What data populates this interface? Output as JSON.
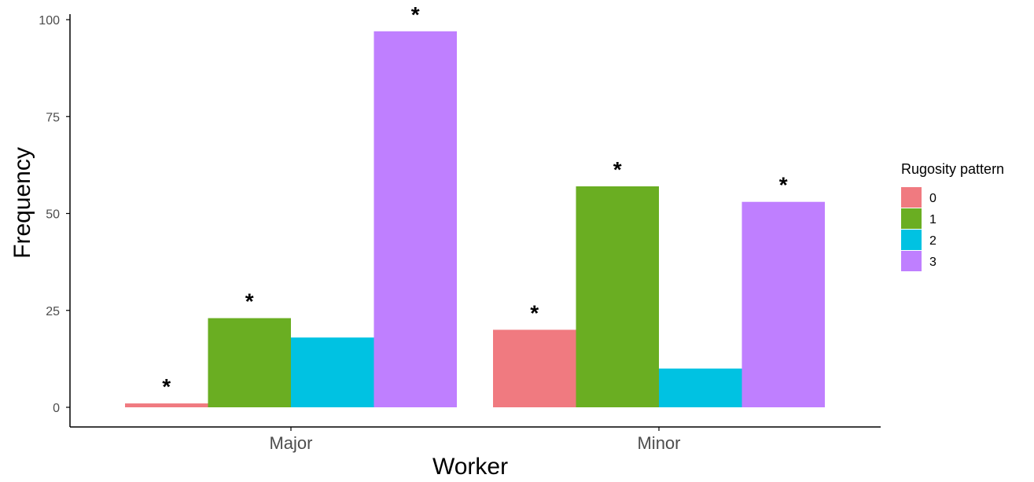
{
  "chart_data": {
    "type": "bar",
    "categories": [
      "Major",
      "Minor"
    ],
    "series": [
      {
        "name": "0",
        "color": "#F07A80",
        "values": [
          1,
          20
        ],
        "significant": [
          true,
          true
        ]
      },
      {
        "name": "1",
        "color": "#6AAE22",
        "values": [
          23,
          57
        ],
        "significant": [
          true,
          true
        ]
      },
      {
        "name": "2",
        "color": "#00C2E2",
        "values": [
          18,
          10
        ],
        "significant": [
          false,
          false
        ]
      },
      {
        "name": "3",
        "color": "#BF7FFF",
        "values": [
          97,
          53
        ],
        "significant": [
          true,
          true
        ]
      }
    ],
    "xlabel": "Worker",
    "ylabel": "Frequency",
    "ylim": [
      0,
      100
    ],
    "yticks": [
      0,
      25,
      50,
      75,
      100
    ],
    "legend_title": "Rugosity pattern",
    "legend_position": "right",
    "significance_marker": "*",
    "grid": false
  }
}
